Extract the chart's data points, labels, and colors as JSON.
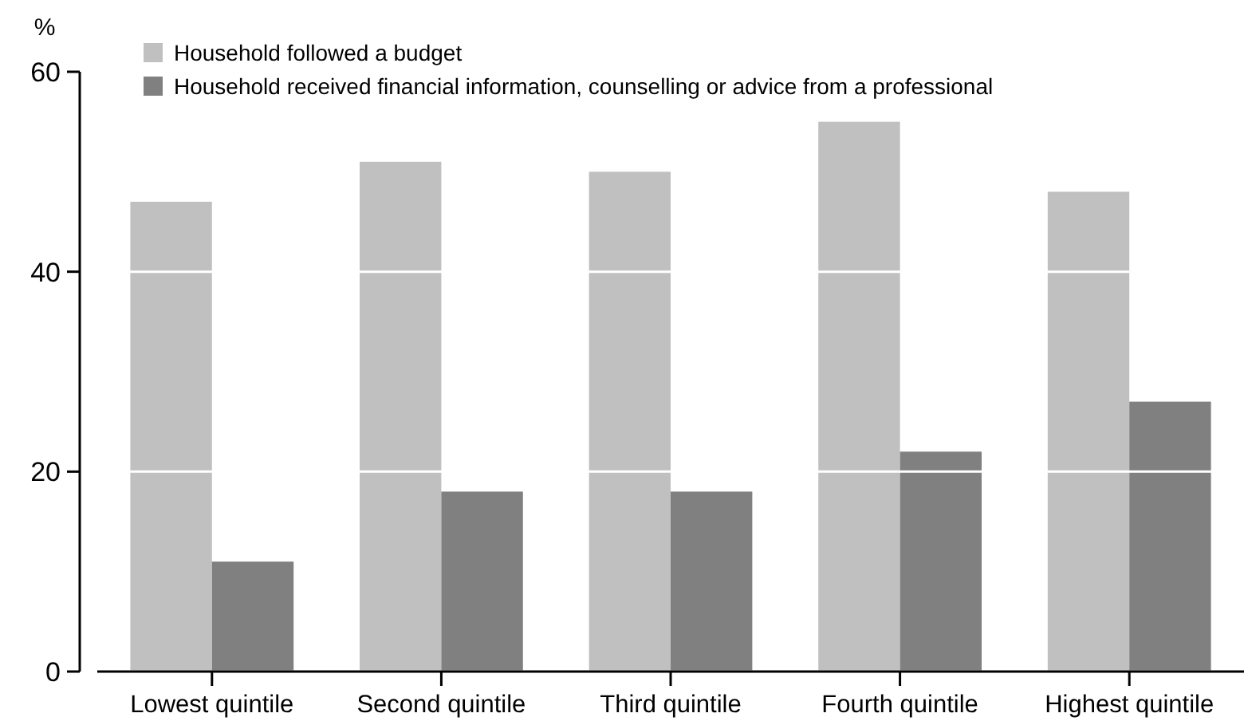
{
  "chart_data": {
    "type": "bar",
    "ylabel": "%",
    "categories": [
      "Lowest quintile",
      "Second quintile",
      "Third quintile",
      "Fourth quintile",
      "Highest quintile"
    ],
    "series": [
      {
        "name": "Household followed a budget",
        "color": "#c0c0c0",
        "values": [
          47,
          51,
          50,
          55,
          48
        ]
      },
      {
        "name": "Household received financial information, counselling or advice from a professional",
        "color": "#808080",
        "values": [
          11,
          18,
          18,
          22,
          27
        ]
      }
    ],
    "ylim": [
      0,
      60
    ],
    "yticks": [
      0,
      20,
      40,
      60
    ],
    "grid": "y",
    "legend": "top left"
  }
}
